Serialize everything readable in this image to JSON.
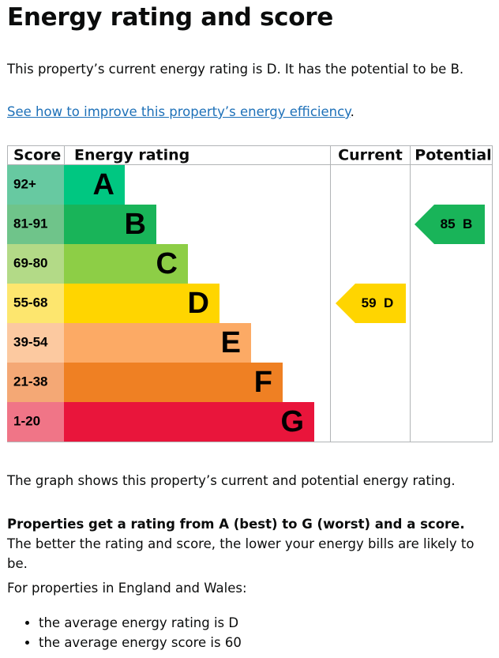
{
  "title": "Energy rating and score",
  "intro": "This property’s current energy rating is D. It has the potential to be B.",
  "link": "See how to improve this property’s energy efficiency",
  "link_tail": ".",
  "table": {
    "headers": [
      "Score",
      "Energy rating",
      "Current",
      "Potential"
    ],
    "bands": [
      {
        "score": "92+",
        "rating": "A",
        "color": "#00c781",
        "score_color": "#67c9a1"
      },
      {
        "score": "81-91",
        "rating": "B",
        "color": "#19b459",
        "score_color": "#6fc48a"
      },
      {
        "score": "69-80",
        "rating": "C",
        "color": "#8dce46",
        "score_color": "#b3da87"
      },
      {
        "score": "55-68",
        "rating": "D",
        "color": "#ffd500",
        "score_color": "#fde66e"
      },
      {
        "score": "39-54",
        "rating": "E",
        "color": "#fcaa65",
        "score_color": "#fcc9a0"
      },
      {
        "score": "21-38",
        "rating": "F",
        "color": "#ef8023",
        "score_color": "#f4a875"
      },
      {
        "score": "1-20",
        "rating": "G",
        "color": "#e9153b",
        "score_color": "#f07587"
      }
    ],
    "current": {
      "score": 59,
      "rating": "D",
      "color": "#ffd500"
    },
    "potential": {
      "score": 85,
      "rating": "B",
      "color": "#19b459"
    }
  },
  "graph_note": "The graph shows this property’s current and potential energy rating.",
  "rating_note": {
    "bold": "Properties get a rating from A (best) to G (worst) and a score.",
    "text": " The better the rating and score, the lower your energy bills are likely to be."
  },
  "average_intro": "For properties in England and Wales:",
  "average_items": [
    "the average energy rating is D",
    "the average energy score is 60"
  ]
}
